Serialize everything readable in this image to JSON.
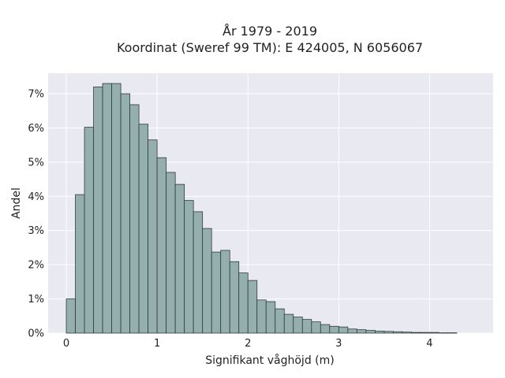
{
  "chart_data": {
    "type": "bar",
    "title": "År 1979 - 2019",
    "subtitle": "Koordinat (Sweref 99 TM): E 424005, N 6056067",
    "xlabel": "Signifikant våghöjd (m)",
    "ylabel": "Andel",
    "xlim": [
      -0.2,
      4.7
    ],
    "ylim": [
      0,
      7.6
    ],
    "x_ticks": [
      0,
      1,
      2,
      3,
      4
    ],
    "x_tick_labels": [
      "0",
      "1",
      "2",
      "3",
      "4"
    ],
    "y_ticks": [
      0,
      1,
      2,
      3,
      4,
      5,
      6,
      7
    ],
    "y_tick_labels": [
      "0%",
      "1%",
      "2%",
      "3%",
      "4%",
      "5%",
      "6%",
      "7%"
    ],
    "grid": true,
    "bin_width": 0.1,
    "bin_starts": [
      0.0,
      0.1,
      0.2,
      0.3,
      0.4,
      0.5,
      0.6,
      0.7,
      0.8,
      0.9,
      1.0,
      1.1,
      1.2,
      1.3,
      1.4,
      1.5,
      1.6,
      1.7,
      1.8,
      1.9,
      2.0,
      2.1,
      2.2,
      2.3,
      2.4,
      2.5,
      2.6,
      2.7,
      2.8,
      2.9,
      3.0,
      3.1,
      3.2,
      3.3,
      3.4,
      3.5,
      3.6,
      3.7,
      3.8,
      3.9,
      4.0,
      4.1,
      4.2
    ],
    "values": [
      1.0,
      4.05,
      6.02,
      7.2,
      7.3,
      7.3,
      7.0,
      6.68,
      6.11,
      5.65,
      5.13,
      4.7,
      4.35,
      3.88,
      3.55,
      3.06,
      2.37,
      2.42,
      2.09,
      1.76,
      1.54,
      0.97,
      0.92,
      0.71,
      0.55,
      0.47,
      0.4,
      0.33,
      0.25,
      0.2,
      0.18,
      0.12,
      0.1,
      0.08,
      0.06,
      0.05,
      0.04,
      0.03,
      0.02,
      0.02,
      0.02,
      0.01,
      0.01
    ],
    "colors": {
      "bar_fill": "#95aeae",
      "bar_edge": "#2f3d3d",
      "plot_bg": "#e9e9f1",
      "grid": "#ffffff"
    }
  }
}
